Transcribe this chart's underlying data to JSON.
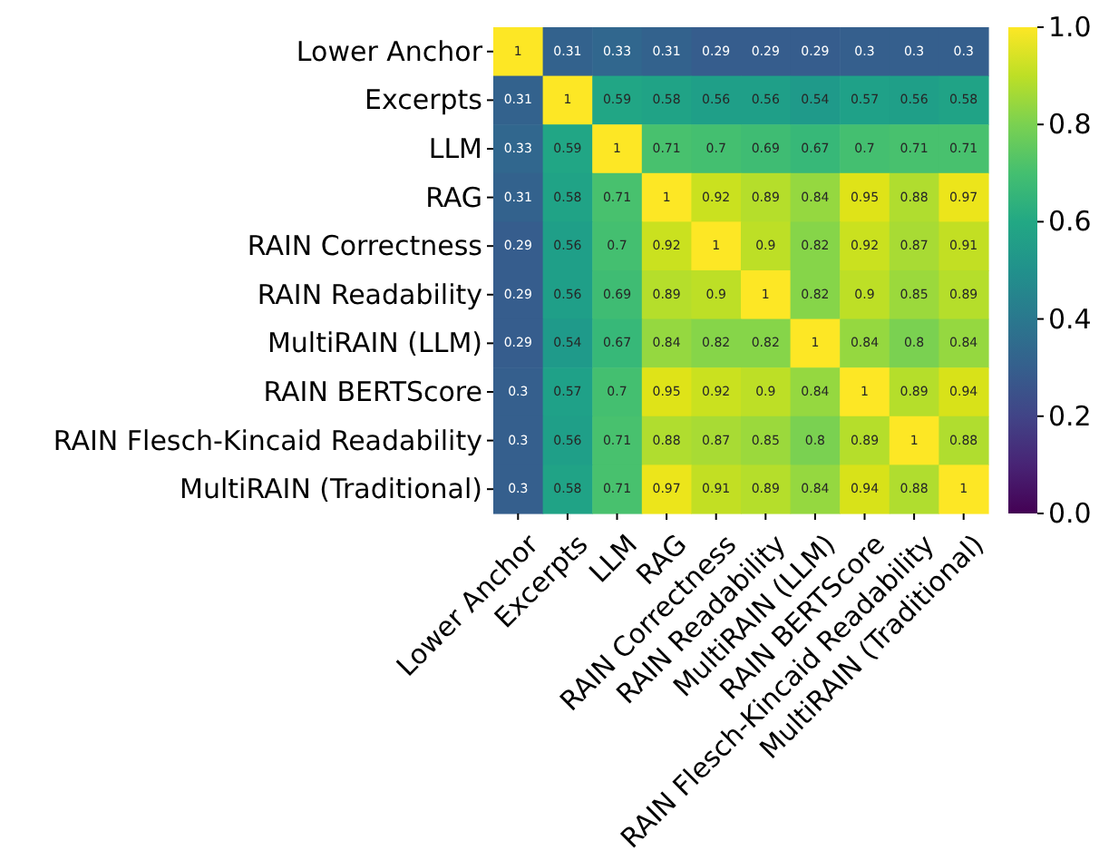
{
  "chart_data": {
    "type": "heatmap",
    "categories": [
      "Lower Anchor",
      "Excerpts",
      "LLM",
      "RAG",
      "RAIN Correctness",
      "RAIN Readability",
      "MultiRAIN (LLM)",
      "RAIN BERTScore",
      "RAIN Flesch-Kincaid Readability",
      "MultiRAIN (Traditional)"
    ],
    "y_categories": [
      "Lower Anchor",
      "Excerpts",
      "LLM",
      "RAG",
      "RAIN Correctness",
      "RAIN Readability",
      "MultiRAIN (LLM)",
      "RAIN BERTScore",
      "RAIN Flesch-Kincaid Readability",
      "MultiRAIN (Traditional)"
    ],
    "cells": [
      [
        1,
        0.31,
        0.33,
        0.31,
        0.29,
        0.29,
        0.29,
        0.3,
        0.3,
        0.3
      ],
      [
        0.31,
        1,
        0.59,
        0.58,
        0.56,
        0.56,
        0.54,
        0.57,
        0.56,
        0.58
      ],
      [
        0.33,
        0.59,
        1,
        0.71,
        0.7,
        0.69,
        0.67,
        0.7,
        0.71,
        0.71
      ],
      [
        0.31,
        0.58,
        0.71,
        1,
        0.92,
        0.89,
        0.84,
        0.95,
        0.88,
        0.97
      ],
      [
        0.29,
        0.56,
        0.7,
        0.92,
        1,
        0.9,
        0.82,
        0.92,
        0.87,
        0.91
      ],
      [
        0.29,
        0.56,
        0.69,
        0.89,
        0.9,
        1,
        0.82,
        0.9,
        0.85,
        0.89
      ],
      [
        0.29,
        0.54,
        0.67,
        0.84,
        0.82,
        0.82,
        1,
        0.84,
        0.8,
        0.84
      ],
      [
        0.3,
        0.57,
        0.7,
        0.95,
        0.92,
        0.9,
        0.84,
        1,
        0.89,
        0.94
      ],
      [
        0.3,
        0.56,
        0.71,
        0.88,
        0.87,
        0.85,
        0.8,
        0.89,
        1,
        0.88
      ],
      [
        0.3,
        0.58,
        0.71,
        0.97,
        0.91,
        0.89,
        0.84,
        0.94,
        0.88,
        1
      ]
    ],
    "data_labels": true,
    "clim": [
      0,
      1
    ],
    "cticks": [
      {
        "value": 0,
        "label": "0.0"
      },
      {
        "value": 0.2,
        "label": "0.2"
      },
      {
        "value": 0.4,
        "label": "0.4"
      },
      {
        "value": 0.6,
        "label": "0.6"
      },
      {
        "value": 0.8,
        "label": "0.8"
      },
      {
        "value": 1,
        "label": "1.0"
      }
    ]
  }
}
